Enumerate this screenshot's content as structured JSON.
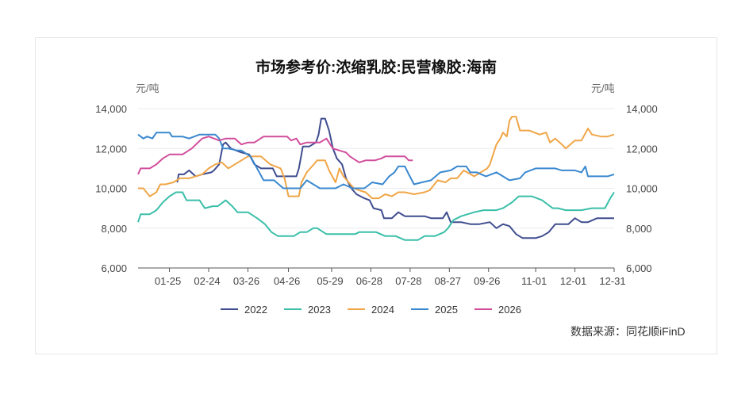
{
  "chart_data": {
    "type": "line",
    "title": "市场参考价:浓缩乳胶:民营橡胶:海南",
    "ylabel_left": "元/吨",
    "ylabel_right": "元/吨",
    "ylim": [
      6000,
      14000
    ],
    "yticks": [
      "6,000",
      "8,000",
      "10,000",
      "12,000",
      "14,000"
    ],
    "xticks": [
      {
        "label": "01-25",
        "day": 25
      },
      {
        "label": "02-24",
        "day": 55
      },
      {
        "label": "03-26",
        "day": 85
      },
      {
        "label": "04-26",
        "day": 116
      },
      {
        "label": "05-29",
        "day": 149
      },
      {
        "label": "06-28",
        "day": 179
      },
      {
        "label": "07-28",
        "day": 209
      },
      {
        "label": "08-27",
        "day": 239
      },
      {
        "label": "09-26",
        "day": 269
      },
      {
        "label": "11-01",
        "day": 305
      },
      {
        "label": "12-01",
        "day": 335
      },
      {
        "label": "12-31",
        "day": 365
      }
    ],
    "legend_position": "bottom",
    "grid": "horizontal",
    "series": [
      {
        "name": "2022",
        "color": "#3f4d8f",
        "points": [
          [
            31,
            10300
          ],
          [
            32,
            10700
          ],
          [
            36,
            10700
          ],
          [
            40,
            10900
          ],
          [
            45,
            10600
          ],
          [
            50,
            10700
          ],
          [
            57,
            10800
          ],
          [
            59,
            10900
          ],
          [
            63,
            11200
          ],
          [
            66,
            12200
          ],
          [
            68,
            12300
          ],
          [
            72,
            12000
          ],
          [
            80,
            11800
          ],
          [
            86,
            11700
          ],
          [
            90,
            11200
          ],
          [
            95,
            11000
          ],
          [
            104,
            11000
          ],
          [
            107,
            10600
          ],
          [
            115,
            10600
          ],
          [
            122,
            10600
          ],
          [
            124,
            11000
          ],
          [
            127,
            12100
          ],
          [
            132,
            12100
          ],
          [
            137,
            12300
          ],
          [
            139,
            12700
          ],
          [
            141,
            13500
          ],
          [
            144,
            13500
          ],
          [
            147,
            12900
          ],
          [
            150,
            12000
          ],
          [
            153,
            11500
          ],
          [
            157,
            11200
          ],
          [
            160,
            10500
          ],
          [
            164,
            10000
          ],
          [
            168,
            9700
          ],
          [
            174,
            9500
          ],
          [
            178,
            9400
          ],
          [
            181,
            9000
          ],
          [
            187,
            8900
          ],
          [
            189,
            8500
          ],
          [
            195,
            8500
          ],
          [
            200,
            8800
          ],
          [
            205,
            8600
          ],
          [
            210,
            8600
          ],
          [
            220,
            8600
          ],
          [
            225,
            8500
          ],
          [
            234,
            8500
          ],
          [
            237,
            8800
          ],
          [
            240,
            8300
          ],
          [
            248,
            8300
          ],
          [
            255,
            8200
          ],
          [
            262,
            8200
          ],
          [
            270,
            8300
          ],
          [
            275,
            8000
          ],
          [
            280,
            8200
          ],
          [
            285,
            8100
          ],
          [
            290,
            7700
          ],
          [
            295,
            7500
          ],
          [
            305,
            7500
          ],
          [
            310,
            7600
          ],
          [
            315,
            7800
          ],
          [
            320,
            8200
          ],
          [
            330,
            8200
          ],
          [
            335,
            8500
          ],
          [
            340,
            8300
          ],
          [
            345,
            8300
          ],
          [
            352,
            8500
          ],
          [
            365,
            8500
          ]
        ]
      },
      {
        "name": "2023",
        "color": "#3bbfa9",
        "points": [
          [
            1,
            8300
          ],
          [
            3,
            8700
          ],
          [
            10,
            8700
          ],
          [
            15,
            8900
          ],
          [
            20,
            9300
          ],
          [
            25,
            9600
          ],
          [
            30,
            9800
          ],
          [
            35,
            9800
          ],
          [
            38,
            9400
          ],
          [
            48,
            9400
          ],
          [
            52,
            9000
          ],
          [
            58,
            9100
          ],
          [
            62,
            9100
          ],
          [
            68,
            9400
          ],
          [
            73,
            9100
          ],
          [
            77,
            8800
          ],
          [
            85,
            8800
          ],
          [
            92,
            8500
          ],
          [
            98,
            8200
          ],
          [
            103,
            7800
          ],
          [
            108,
            7600
          ],
          [
            120,
            7600
          ],
          [
            125,
            7800
          ],
          [
            130,
            7800
          ],
          [
            135,
            8000
          ],
          [
            138,
            8000
          ],
          [
            145,
            7700
          ],
          [
            153,
            7700
          ],
          [
            167,
            7700
          ],
          [
            170,
            7800
          ],
          [
            183,
            7800
          ],
          [
            190,
            7600
          ],
          [
            198,
            7600
          ],
          [
            205,
            7400
          ],
          [
            215,
            7400
          ],
          [
            220,
            7600
          ],
          [
            228,
            7600
          ],
          [
            235,
            7800
          ],
          [
            238,
            8000
          ],
          [
            242,
            8400
          ],
          [
            248,
            8600
          ],
          [
            258,
            8800
          ],
          [
            265,
            8900
          ],
          [
            275,
            8900
          ],
          [
            280,
            9000
          ],
          [
            287,
            9300
          ],
          [
            292,
            9600
          ],
          [
            302,
            9600
          ],
          [
            310,
            9400
          ],
          [
            318,
            9000
          ],
          [
            322,
            9000
          ],
          [
            328,
            8900
          ],
          [
            340,
            8900
          ],
          [
            348,
            9000
          ],
          [
            358,
            9000
          ],
          [
            362,
            9500
          ],
          [
            365,
            9800
          ]
        ]
      },
      {
        "name": "2024",
        "color": "#f0a648",
        "points": [
          [
            1,
            10000
          ],
          [
            5,
            10000
          ],
          [
            10,
            9600
          ],
          [
            15,
            9800
          ],
          [
            18,
            10200
          ],
          [
            22,
            10200
          ],
          [
            28,
            10300
          ],
          [
            33,
            10500
          ],
          [
            40,
            10500
          ],
          [
            45,
            10600
          ],
          [
            50,
            10700
          ],
          [
            55,
            11000
          ],
          [
            60,
            11200
          ],
          [
            65,
            11300
          ],
          [
            70,
            11000
          ],
          [
            75,
            11200
          ],
          [
            80,
            11400
          ],
          [
            85,
            11600
          ],
          [
            95,
            11600
          ],
          [
            102,
            11200
          ],
          [
            110,
            11000
          ],
          [
            113,
            10500
          ],
          [
            116,
            9600
          ],
          [
            124,
            9600
          ],
          [
            126,
            10300
          ],
          [
            130,
            10800
          ],
          [
            134,
            11100
          ],
          [
            138,
            11400
          ],
          [
            144,
            11400
          ],
          [
            147,
            10900
          ],
          [
            152,
            10300
          ],
          [
            155,
            11000
          ],
          [
            158,
            10600
          ],
          [
            162,
            10300
          ],
          [
            166,
            10000
          ],
          [
            170,
            9900
          ],
          [
            175,
            9800
          ],
          [
            180,
            9500
          ],
          [
            185,
            9500
          ],
          [
            190,
            9700
          ],
          [
            195,
            9600
          ],
          [
            200,
            9800
          ],
          [
            205,
            9800
          ],
          [
            212,
            9700
          ],
          [
            220,
            9800
          ],
          [
            224,
            9900
          ],
          [
            230,
            10400
          ],
          [
            236,
            10300
          ],
          [
            240,
            10500
          ],
          [
            245,
            10500
          ],
          [
            250,
            10900
          ],
          [
            258,
            10600
          ],
          [
            263,
            10800
          ],
          [
            268,
            11000
          ],
          [
            270,
            11200
          ],
          [
            275,
            12200
          ],
          [
            278,
            12500
          ],
          [
            280,
            12800
          ],
          [
            283,
            12600
          ],
          [
            285,
            13400
          ],
          [
            287,
            13600
          ],
          [
            290,
            13600
          ],
          [
            293,
            12900
          ],
          [
            300,
            12900
          ],
          [
            308,
            12700
          ],
          [
            313,
            12800
          ],
          [
            316,
            12300
          ],
          [
            320,
            12500
          ],
          [
            325,
            12200
          ],
          [
            328,
            12000
          ],
          [
            335,
            12400
          ],
          [
            340,
            12400
          ],
          [
            345,
            13000
          ],
          [
            348,
            12700
          ],
          [
            355,
            12600
          ],
          [
            360,
            12600
          ],
          [
            365,
            12700
          ]
        ]
      },
      {
        "name": "2025",
        "color": "#3a88cf",
        "points": [
          [
            1,
            12700
          ],
          [
            5,
            12500
          ],
          [
            8,
            12600
          ],
          [
            12,
            12500
          ],
          [
            15,
            12800
          ],
          [
            25,
            12800
          ],
          [
            27,
            12600
          ],
          [
            35,
            12600
          ],
          [
            40,
            12500
          ],
          [
            48,
            12700
          ],
          [
            60,
            12700
          ],
          [
            63,
            12500
          ],
          [
            66,
            12000
          ],
          [
            70,
            12000
          ],
          [
            77,
            11900
          ],
          [
            80,
            11900
          ],
          [
            87,
            11600
          ],
          [
            92,
            11000
          ],
          [
            97,
            10400
          ],
          [
            105,
            10400
          ],
          [
            112,
            10000
          ],
          [
            125,
            10000
          ],
          [
            130,
            10400
          ],
          [
            135,
            10200
          ],
          [
            140,
            10000
          ],
          [
            152,
            10000
          ],
          [
            158,
            10200
          ],
          [
            165,
            10000
          ],
          [
            174,
            10000
          ],
          [
            180,
            10300
          ],
          [
            188,
            10200
          ],
          [
            193,
            10600
          ],
          [
            197,
            10800
          ],
          [
            200,
            11100
          ],
          [
            205,
            11100
          ],
          [
            208,
            10700
          ],
          [
            212,
            10200
          ],
          [
            218,
            10300
          ],
          [
            225,
            10400
          ],
          [
            232,
            10800
          ],
          [
            240,
            10900
          ],
          [
            245,
            11100
          ],
          [
            252,
            11100
          ],
          [
            255,
            10800
          ],
          [
            260,
            10800
          ],
          [
            267,
            10600
          ],
          [
            275,
            10800
          ],
          [
            285,
            10400
          ],
          [
            293,
            10500
          ],
          [
            297,
            10800
          ],
          [
            305,
            11000
          ],
          [
            320,
            11000
          ],
          [
            325,
            10900
          ],
          [
            335,
            10900
          ],
          [
            340,
            10800
          ],
          [
            343,
            11100
          ],
          [
            345,
            10600
          ],
          [
            360,
            10600
          ],
          [
            365,
            10700
          ]
        ]
      },
      {
        "name": "2026",
        "color": "#d14d9b",
        "points": [
          [
            1,
            10700
          ],
          [
            3,
            11000
          ],
          [
            10,
            11000
          ],
          [
            15,
            11200
          ],
          [
            20,
            11500
          ],
          [
            25,
            11700
          ],
          [
            35,
            11700
          ],
          [
            42,
            12000
          ],
          [
            50,
            12500
          ],
          [
            55,
            12600
          ],
          [
            63,
            12400
          ],
          [
            68,
            12500
          ],
          [
            75,
            12500
          ],
          [
            80,
            12200
          ],
          [
            85,
            12300
          ],
          [
            90,
            12300
          ],
          [
            97,
            12600
          ],
          [
            115,
            12600
          ],
          [
            118,
            12400
          ],
          [
            122,
            12500
          ],
          [
            125,
            12200
          ],
          [
            130,
            12300
          ],
          [
            140,
            12300
          ],
          [
            145,
            12500
          ],
          [
            150,
            12000
          ],
          [
            155,
            11900
          ],
          [
            160,
            11800
          ],
          [
            163,
            11600
          ],
          [
            170,
            11300
          ],
          [
            175,
            11400
          ],
          [
            182,
            11400
          ],
          [
            187,
            11500
          ],
          [
            190,
            11600
          ],
          [
            200,
            11600
          ],
          [
            205,
            11600
          ],
          [
            208,
            11400
          ],
          [
            211,
            11400
          ]
        ]
      }
    ]
  },
  "source": "数据来源：同花顺iFinD"
}
